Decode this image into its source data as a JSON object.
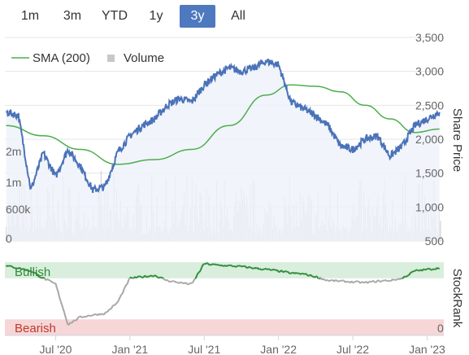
{
  "range_selector": {
    "buttons": [
      "1m",
      "3m",
      "YTD",
      "1y",
      "3y",
      "All"
    ],
    "active": "3y"
  },
  "chart_data": [
    {
      "type": "line",
      "title": "",
      "legend": [
        "SMA (200)",
        "Volume"
      ],
      "legend_position": "top-left",
      "x_ticks": [
        "Jul '20",
        "Jan '21",
        "Jul '21",
        "Jan '22",
        "Jul '22",
        "Jan '23"
      ],
      "ylabel": "Share Price",
      "y_ticks": [
        "500",
        "1,000",
        "1,500",
        "2,000",
        "2,500",
        "3,000",
        "3,500"
      ],
      "ylim": [
        500,
        3500
      ],
      "volume_ticks": [
        "0",
        "600k",
        "1m",
        "2m"
      ],
      "colors": {
        "price": "#4a72b8",
        "sma": "#4cae4c",
        "volume": "#c8c8c8",
        "area": "#eef2fa"
      },
      "series": [
        {
          "name": "Share Price",
          "x": [
            "2020-03",
            "2020-04",
            "2020-05",
            "2020-06",
            "2020-07",
            "2020-08",
            "2020-09",
            "2020-10",
            "2020-11",
            "2020-12",
            "2021-01",
            "2021-02",
            "2021-03",
            "2021-04",
            "2021-05",
            "2021-06",
            "2021-07",
            "2021-08",
            "2021-09",
            "2021-10",
            "2021-11",
            "2021-12",
            "2022-01",
            "2022-02",
            "2022-03",
            "2022-04",
            "2022-05",
            "2022-06",
            "2022-07",
            "2022-08",
            "2022-09",
            "2022-10",
            "2022-11",
            "2022-12",
            "2023-01",
            "2023-02"
          ],
          "values": [
            2400,
            2350,
            1250,
            1800,
            1450,
            1850,
            1600,
            1250,
            1300,
            1800,
            2050,
            2200,
            2300,
            2500,
            2600,
            2550,
            2800,
            2950,
            3050,
            3000,
            3050,
            3150,
            3100,
            2550,
            2450,
            2350,
            2200,
            1900,
            1850,
            2000,
            2050,
            1750,
            1900,
            2200,
            2300,
            2400
          ]
        },
        {
          "name": "SMA (200)",
          "x": [
            "2020-03",
            "2020-06",
            "2020-09",
            "2020-12",
            "2021-03",
            "2021-06",
            "2021-09",
            "2021-12",
            "2022-02",
            "2022-04",
            "2022-06",
            "2022-08",
            "2022-10",
            "2022-12",
            "2023-02"
          ],
          "values": [
            2200,
            2050,
            1850,
            1630,
            1700,
            1850,
            2200,
            2650,
            2800,
            2780,
            2700,
            2500,
            2300,
            2100,
            2150
          ]
        }
      ]
    },
    {
      "type": "line",
      "title": "",
      "ylabel": "StockRank",
      "y_ticks": [
        "0"
      ],
      "bands": [
        "Bullish",
        "Bearish"
      ],
      "colors": {
        "bullish_band": "#d9eedc",
        "bearish_band": "#f6d6d6",
        "above": "#2e8b3a",
        "below": "#a6a6a6"
      },
      "series": [
        {
          "name": "StockRank",
          "x": [
            "2020-03",
            "2020-04",
            "2020-05",
            "2020-06",
            "2020-07",
            "2020-08",
            "2020-09",
            "2020-10",
            "2020-11",
            "2020-12",
            "2021-01",
            "2021-02",
            "2021-03",
            "2021-04",
            "2021-05",
            "2021-06",
            "2021-07",
            "2021-08",
            "2021-09",
            "2021-10",
            "2021-11",
            "2021-12",
            "2022-01",
            "2022-02",
            "2022-03",
            "2022-04",
            "2022-05",
            "2022-06",
            "2022-07",
            "2022-08",
            "2022-09",
            "2022-10",
            "2022-11",
            "2022-12",
            "2023-01",
            "2023-02"
          ],
          "values": [
            95,
            92,
            88,
            78,
            70,
            15,
            25,
            28,
            30,
            45,
            78,
            80,
            82,
            75,
            72,
            70,
            98,
            96,
            95,
            94,
            92,
            90,
            88,
            85,
            84,
            80,
            75,
            74,
            73,
            72,
            74,
            75,
            78,
            88,
            90,
            92
          ]
        }
      ]
    }
  ]
}
